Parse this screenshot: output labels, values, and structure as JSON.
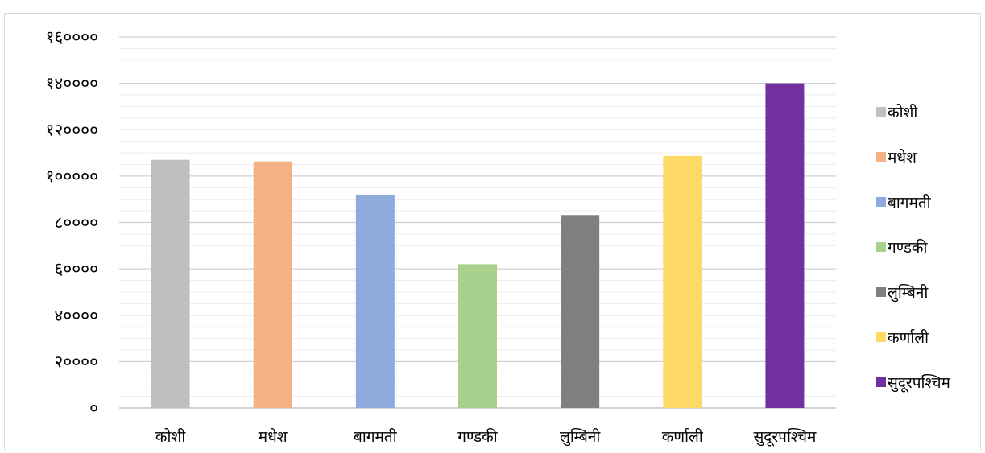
{
  "chart_data": {
    "type": "bar",
    "title": "",
    "xlabel": "",
    "ylabel": "",
    "ylim": [
      0,
      160000
    ],
    "y_ticks": [
      {
        "value": 0,
        "label": "०"
      },
      {
        "value": 20000,
        "label": "२००००"
      },
      {
        "value": 40000,
        "label": "४००००"
      },
      {
        "value": 60000,
        "label": "६००००"
      },
      {
        "value": 80000,
        "label": "८००००"
      },
      {
        "value": 100000,
        "label": "१०००००"
      },
      {
        "value": 120000,
        "label": "१२००००"
      },
      {
        "value": 140000,
        "label": "१४००००"
      },
      {
        "value": 160000,
        "label": "१६००००"
      }
    ],
    "grid": "major-and-minor",
    "legend_position": "right",
    "categories": [
      "कोशी",
      "मधेश",
      "बागमती",
      "गण्डकी",
      "लुम्बिनी",
      "कर्णाली",
      "सुदूरपश्चिम"
    ],
    "values": [
      107000,
      106300,
      92000,
      62000,
      83200,
      108700,
      140000
    ],
    "colors": [
      "#bfbfbf",
      "#f4b183",
      "#8faadc",
      "#a9d18e",
      "#7f7f7f",
      "#ffd966",
      "#7030a0"
    ],
    "legend": [
      "कोशी",
      "मधेश",
      "बागमती",
      "गण्डकी",
      "लुम्बिनी",
      "कर्णाली",
      "सुदूरपश्चिम"
    ]
  }
}
